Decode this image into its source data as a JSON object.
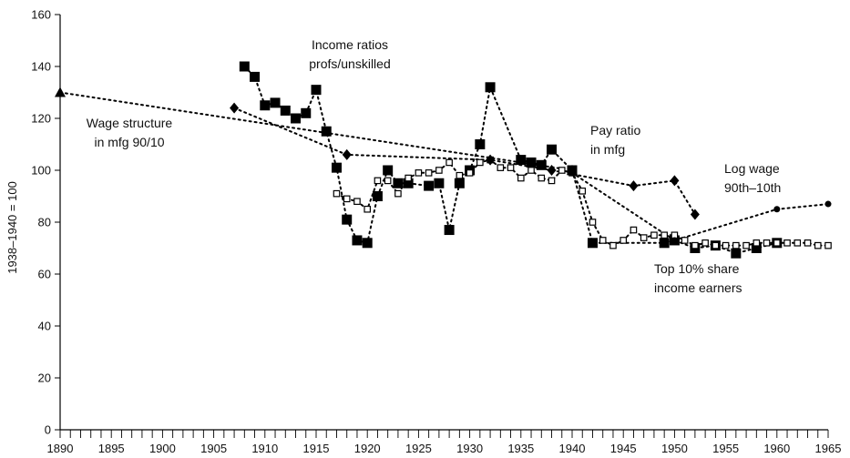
{
  "chart_data": {
    "type": "line",
    "title": "",
    "xlabel": "",
    "ylabel": "1938–1940 = 100",
    "xlim": [
      1890,
      1965
    ],
    "ylim": [
      0,
      160
    ],
    "x_tick_labels": [
      "1890",
      "1895",
      "1900",
      "1905",
      "1910",
      "1915",
      "1920",
      "1925",
      "1930",
      "1935",
      "1940",
      "1945",
      "1950",
      "1955",
      "1960",
      "1965"
    ],
    "y_tick_labels": [
      "0",
      "20",
      "40",
      "60",
      "80",
      "100",
      "120",
      "140",
      "160"
    ],
    "grid": false,
    "annotations": [
      {
        "lines": [
          "Income ratios",
          "profs/unskilled"
        ]
      },
      {
        "lines": [
          "Wage structure",
          "in mfg 90/10"
        ]
      },
      {
        "lines": [
          "Pay ratio",
          "in mfg"
        ]
      },
      {
        "lines": [
          "Log wage",
          "90th–10th"
        ]
      },
      {
        "lines": [
          "Top 10% share",
          "income earners"
        ]
      }
    ],
    "series": [
      {
        "marker": "filled-square",
        "x": [
          1908,
          1909,
          1910,
          1911,
          1912,
          1913,
          1914,
          1915,
          1916,
          1917,
          1918,
          1919,
          1920,
          1921,
          1922,
          1923,
          1924,
          1926,
          1927,
          1928,
          1929,
          1930,
          1931,
          1932,
          1935,
          1936,
          1937,
          1938,
          1940,
          1942,
          1949,
          1950,
          1952,
          1954,
          1956,
          1958,
          1960
        ],
        "y": [
          140,
          136,
          125,
          126,
          123,
          120,
          122,
          131,
          115,
          101,
          81,
          73,
          72,
          90,
          100,
          95,
          95,
          94,
          95,
          77,
          95,
          100,
          110,
          132,
          104,
          103,
          102,
          108,
          100,
          72,
          72,
          73,
          70,
          71,
          68,
          70,
          72
        ]
      },
      {
        "marker": "open-square",
        "x": [
          1917,
          1918,
          1919,
          1920,
          1921,
          1922,
          1923,
          1924,
          1925,
          1926,
          1927,
          1928,
          1929,
          1930,
          1931,
          1932,
          1933,
          1934,
          1935,
          1936,
          1937,
          1938,
          1939,
          1940,
          1941,
          1942,
          1943,
          1944,
          1945,
          1946,
          1947,
          1948,
          1949,
          1950,
          1951,
          1952,
          1953,
          1954,
          1955,
          1956,
          1957,
          1958,
          1959,
          1960,
          1961,
          1962,
          1963,
          1964,
          1965
        ],
        "y": [
          91,
          89,
          88,
          85,
          96,
          96,
          91,
          97,
          99,
          99,
          100,
          103,
          98,
          99,
          103,
          104,
          101,
          101,
          97,
          100,
          97,
          96,
          100,
          99,
          92,
          80,
          73,
          71,
          73,
          77,
          74,
          75,
          75,
          75,
          73,
          71,
          72,
          71,
          71,
          71,
          71,
          72,
          72,
          72,
          72,
          72,
          72,
          71,
          71
        ]
      },
      {
        "marker": "diamond",
        "x": [
          1907,
          1918,
          1932,
          1938,
          1946,
          1950,
          1952
        ],
        "y": [
          124,
          106,
          104,
          100,
          94,
          96,
          83
        ]
      },
      {
        "marker": "triangle",
        "x": [
          1890,
          1940
        ],
        "y": [
          130,
          100
        ]
      },
      {
        "marker": "circle",
        "x": [
          1940,
          1950,
          1960,
          1965
        ],
        "y": [
          99,
          73,
          85,
          87
        ]
      }
    ]
  }
}
